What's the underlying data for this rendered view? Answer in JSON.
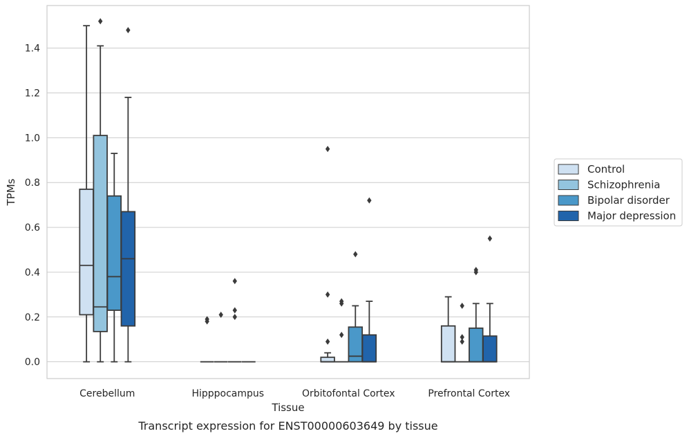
{
  "chart_data": {
    "type": "box",
    "caption": "Transcript expression for ENST00000603649 by tissue",
    "xlabel": "Tissue",
    "ylabel": "TPMs",
    "ylim": [
      -0.075,
      1.59
    ],
    "yticks": [
      "0.0",
      "0.2",
      "0.4",
      "0.6",
      "0.8",
      "1.0",
      "1.2",
      "1.4"
    ],
    "grid": true,
    "legend_position": "right",
    "categories": [
      "Cerebellum",
      "Hipppocampus",
      "Orbitofontal Cortex",
      "Prefrontal Cortex"
    ],
    "series": [
      {
        "name": "Control",
        "color": "#cfe1f2",
        "boxes": [
          {
            "whislo": 0.0,
            "q1": 0.21,
            "med": 0.43,
            "q3": 0.77,
            "whishi": 1.5,
            "fliers": []
          },
          {
            "whislo": 0.0,
            "q1": 0.0,
            "med": 0.0,
            "q3": 0.0,
            "whishi": 0.0,
            "fliers": [
              0.18,
              0.19
            ]
          },
          {
            "whislo": 0.0,
            "q1": 0.0,
            "med": 0.0,
            "q3": 0.02,
            "whishi": 0.04,
            "fliers": [
              0.09,
              0.3,
              0.95
            ]
          },
          {
            "whislo": 0.0,
            "q1": 0.0,
            "med": 0.0,
            "q3": 0.16,
            "whishi": 0.29,
            "fliers": []
          }
        ]
      },
      {
        "name": "Schizophrenia",
        "color": "#93c4de",
        "boxes": [
          {
            "whislo": 0.0,
            "q1": 0.135,
            "med": 0.245,
            "q3": 1.01,
            "whishi": 1.41,
            "fliers": [
              1.52
            ]
          },
          {
            "whislo": 0.0,
            "q1": 0.0,
            "med": 0.0,
            "q3": 0.0,
            "whishi": 0.0,
            "fliers": [
              0.21
            ]
          },
          {
            "whislo": 0.0,
            "q1": 0.0,
            "med": 0.0,
            "q3": 0.0,
            "whishi": 0.0,
            "fliers": [
              0.12,
              0.26,
              0.27
            ]
          },
          {
            "whislo": 0.0,
            "q1": 0.0,
            "med": 0.0,
            "q3": 0.0,
            "whishi": 0.0,
            "fliers": [
              0.09,
              0.11,
              0.25
            ]
          }
        ]
      },
      {
        "name": "Bipolar disorder",
        "color": "#4a98c9",
        "boxes": [
          {
            "whislo": 0.0,
            "q1": 0.23,
            "med": 0.38,
            "q3": 0.74,
            "whishi": 0.93,
            "fliers": []
          },
          {
            "whislo": 0.0,
            "q1": 0.0,
            "med": 0.0,
            "q3": 0.0,
            "whishi": 0.0,
            "fliers": [
              0.2,
              0.23,
              0.36
            ]
          },
          {
            "whislo": 0.0,
            "q1": 0.0,
            "med": 0.025,
            "q3": 0.155,
            "whishi": 0.25,
            "fliers": [
              0.48
            ]
          },
          {
            "whislo": 0.0,
            "q1": 0.0,
            "med": 0.0,
            "q3": 0.15,
            "whishi": 0.26,
            "fliers": [
              0.4,
              0.41
            ]
          }
        ]
      },
      {
        "name": "Major depression",
        "color": "#2164ab",
        "boxes": [
          {
            "whislo": 0.0,
            "q1": 0.16,
            "med": 0.46,
            "q3": 0.67,
            "whishi": 1.18,
            "fliers": [
              1.48
            ]
          },
          {
            "whislo": 0.0,
            "q1": 0.0,
            "med": 0.0,
            "q3": 0.0,
            "whishi": 0.0,
            "fliers": []
          },
          {
            "whislo": 0.0,
            "q1": 0.0,
            "med": 0.0,
            "q3": 0.12,
            "whishi": 0.27,
            "fliers": [
              0.72
            ]
          },
          {
            "whislo": 0.0,
            "q1": 0.0,
            "med": 0.0,
            "q3": 0.115,
            "whishi": 0.26,
            "fliers": [
              0.55
            ]
          }
        ]
      }
    ]
  }
}
